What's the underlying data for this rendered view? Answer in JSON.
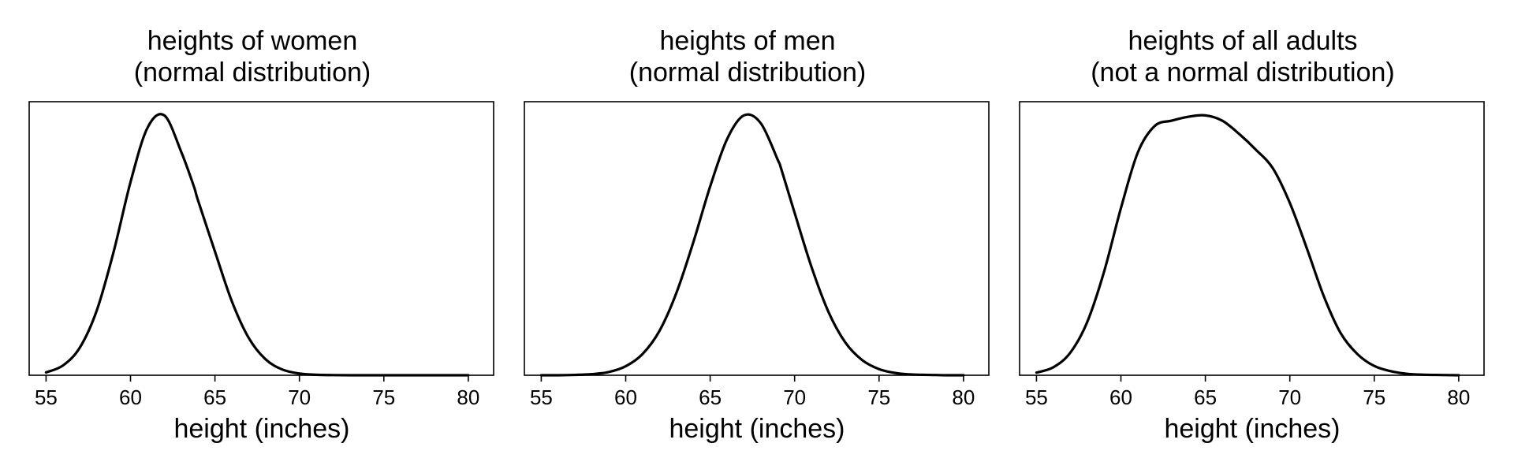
{
  "chart_data": [
    {
      "type": "line",
      "title": [
        "heights of women",
        "(normal distribution)"
      ],
      "xlabel": "height (inches)",
      "ylabel": "",
      "xlim": [
        54,
        81.5
      ],
      "xticks": [
        55,
        60,
        65,
        70,
        75,
        80
      ],
      "yticks": [],
      "grid": false,
      "legend": "none",
      "series": [
        {
          "color": "#000000",
          "x": [
            55,
            56,
            57,
            58,
            59,
            60,
            61,
            62,
            63,
            63.75,
            64,
            65,
            66,
            67,
            68,
            69,
            70,
            71,
            72,
            73,
            74,
            75,
            76,
            77,
            78,
            79,
            80
          ],
          "y": [
            0.0018,
            0.0062,
            0.0176,
            0.0411,
            0.0784,
            0.1227,
            0.1571,
            0.1651,
            0.142,
            0.12,
            0.111,
            0.0786,
            0.047,
            0.0237,
            0.0101,
            0.0036,
            0.0011,
            0.0003,
            0.0001,
            0.0,
            0.0,
            0.0,
            0.0,
            0.0,
            0.0,
            0.0,
            0.0
          ]
        }
      ]
    },
    {
      "type": "line",
      "title": [
        "heights of men",
        "(normal distribution)"
      ],
      "xlabel": "height (inches)",
      "ylabel": "",
      "xlim": [
        54,
        81.5
      ],
      "xticks": [
        55,
        60,
        65,
        70,
        75,
        80
      ],
      "yticks": [],
      "grid": false,
      "legend": "none",
      "series": [
        {
          "color": "#000000",
          "x": [
            55,
            56,
            57,
            58,
            59,
            60,
            61,
            62,
            63,
            64,
            65,
            66,
            67,
            68,
            69,
            69.2,
            70,
            71,
            72,
            73,
            74,
            75,
            76,
            77,
            78,
            79,
            80
          ],
          "y": [
            0.0,
            0.0,
            0.0001,
            0.0003,
            0.0009,
            0.0025,
            0.0059,
            0.0123,
            0.0228,
            0.0368,
            0.0523,
            0.0654,
            0.072,
            0.0698,
            0.0597,
            0.0573,
            0.045,
            0.03,
            0.0176,
            0.0091,
            0.0042,
            0.0017,
            0.0006,
            0.0002,
            0.0001,
            0.0,
            0.0
          ]
        }
      ]
    },
    {
      "type": "line",
      "title": [
        "heights of all adults",
        "(not a normal distribution)"
      ],
      "xlabel": "height (inches)",
      "ylabel": "",
      "xlim": [
        54,
        81.5
      ],
      "xticks": [
        55,
        60,
        65,
        70,
        75,
        80
      ],
      "yticks": [],
      "grid": false,
      "legend": "none",
      "series": [
        {
          "color": "#000000",
          "x": [
            55,
            56,
            57,
            58,
            59,
            60,
            61,
            62,
            63,
            64,
            65,
            66,
            67,
            68,
            69,
            70,
            71,
            72,
            73,
            74,
            75,
            76,
            77,
            78,
            79,
            80
          ],
          "y": [
            0.001,
            0.003,
            0.0085,
            0.02,
            0.039,
            0.063,
            0.084,
            0.094,
            0.096,
            0.0975,
            0.098,
            0.096,
            0.091,
            0.085,
            0.078,
            0.065,
            0.048,
            0.03,
            0.016,
            0.008,
            0.0035,
            0.0015,
            0.0005,
            0.0002,
            0.0001,
            0.0
          ]
        }
      ]
    }
  ]
}
